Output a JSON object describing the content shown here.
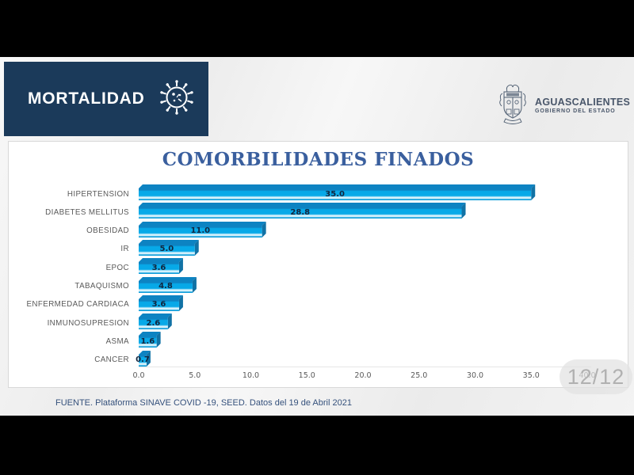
{
  "header": {
    "title": "MORTALIDAD"
  },
  "logo": {
    "name": "AGUASCALIENTES",
    "subtitle": "GOBIERNO DEL ESTADO"
  },
  "page_indicator": "12/12",
  "source": "FUENTE. Plataforma SINAVE COVID -19, SEED. Datos del 19 de Abril 2021",
  "chart_data": {
    "type": "bar",
    "orientation": "horizontal",
    "title": "COMORBILIDADES FINADOS",
    "categories": [
      "HIPERTENSION",
      "DIABETES MELLITUS",
      "OBESIDAD",
      "IR",
      "EPOC",
      "TABAQUISMO",
      "ENFERMEDAD CARDIACA",
      "INMUNOSUPRESION",
      "ASMA",
      "CANCER"
    ],
    "values": [
      35.0,
      28.8,
      11.0,
      5.0,
      3.6,
      4.8,
      3.6,
      2.6,
      1.6,
      0.7
    ],
    "value_labels": [
      "35.0",
      "28.8",
      "11.0",
      "5.0",
      "3.6",
      "4.8",
      "3.6",
      "2.6",
      "1.6",
      "0.7"
    ],
    "xlim": [
      0,
      40
    ],
    "xticks": [
      0,
      5,
      10,
      15,
      20,
      25,
      30,
      35,
      40
    ],
    "grid": false,
    "legend": null,
    "colors": {
      "bar_front_top": "#0d83c2",
      "bar_front_main": "#07a9e8",
      "bar_front_shine": "#d8f2fc",
      "bar_front_bottom": "#0d9edb",
      "bar_top_face": "#0d83c2",
      "bar_side_face": "#1172a5",
      "value_label": "#12263f",
      "category_label": "#5a5a5a",
      "title": "#3a5f9e"
    }
  },
  "colors": {
    "banner_bg": "#1b3a5a",
    "panel_border": "#d8d8d8",
    "slide_bg": "#f1f1f1"
  }
}
